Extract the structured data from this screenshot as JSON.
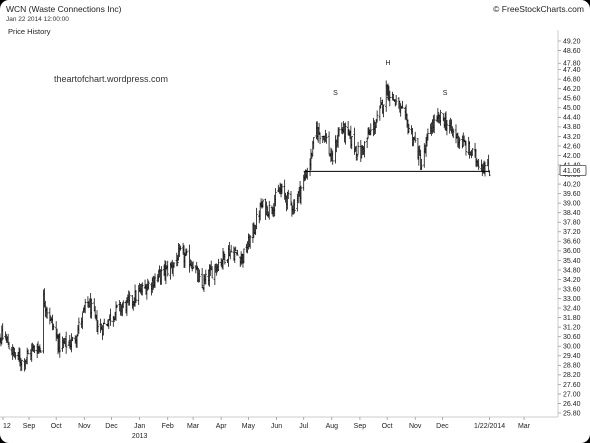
{
  "header": {
    "title": "WCN (Waste Connections Inc)",
    "date": "Jan 22 2014 12:00:00",
    "brand": "© FreeStockCharts.com",
    "watermark": "theartofchart.wordpress.com"
  },
  "legend": "Price History",
  "colors": {
    "background": "#ffffff",
    "frame": "#000000",
    "bars": "#111111",
    "neckline": "#000000",
    "axis": "#cccccc",
    "text": "#222222",
    "label_box": "#444444"
  },
  "chart_data": {
    "type": "ohlc",
    "title": "WCN (Waste Connections Inc)",
    "ylim": [
      25.8,
      49.2
    ],
    "yticks": [
      49.2,
      48.6,
      47.8,
      47.4,
      46.8,
      46.2,
      45.6,
      45.0,
      44.4,
      43.8,
      43.2,
      42.6,
      42.0,
      41.4,
      40.8,
      40.2,
      39.6,
      39.0,
      38.4,
      37.8,
      37.2,
      36.6,
      36.0,
      35.4,
      34.8,
      34.2,
      33.6,
      33.0,
      32.4,
      31.8,
      31.2,
      30.6,
      30.0,
      29.4,
      28.8,
      28.2,
      27.6,
      27.0,
      26.4,
      25.8
    ],
    "ytick_labels": [
      "49.20",
      "48.60",
      "47.80",
      "47.40",
      "46.80",
      "46.20",
      "45.60",
      "45.00",
      "44.40",
      "43.80",
      "43.20",
      "42.60",
      "42.00",
      "41.40",
      "40.80",
      "40.20",
      "39.60",
      "39.00",
      "38.40",
      "37.80",
      "37.20",
      "36.60",
      "36.00",
      "35.40",
      "34.80",
      "34.20",
      "33.60",
      "33.00",
      "32.40",
      "31.80",
      "31.20",
      "30.60",
      "30.00",
      "29.40",
      "28.80",
      "28.20",
      "27.60",
      "27.00",
      "26.40",
      "25.80"
    ],
    "last_price_label": "41.06",
    "x_ticks": [
      {
        "label": "12",
        "date": "2012-08-01"
      },
      {
        "label": "Sep",
        "date": "2012-09-01"
      },
      {
        "label": "Oct",
        "date": "2012-10-01"
      },
      {
        "label": "Nov",
        "date": "2012-11-01"
      },
      {
        "label": "Dec",
        "date": "2012-12-01"
      },
      {
        "label": "Jan",
        "date": "2013-01-01"
      },
      {
        "label": "Feb",
        "date": "2013-02-01"
      },
      {
        "label": "Mar",
        "date": "2013-03-01"
      },
      {
        "label": "Apr",
        "date": "2013-04-01"
      },
      {
        "label": "May",
        "date": "2013-05-01"
      },
      {
        "label": "Jun",
        "date": "2013-06-01"
      },
      {
        "label": "Jul",
        "date": "2013-07-01"
      },
      {
        "label": "Aug",
        "date": "2013-08-01"
      },
      {
        "label": "Sep",
        "date": "2013-09-01"
      },
      {
        "label": "Oct",
        "date": "2013-10-01"
      },
      {
        "label": "Nov",
        "date": "2013-11-01"
      },
      {
        "label": "Dec",
        "date": "2013-12-01"
      },
      {
        "label": "1/22/2014",
        "date": "2014-01-22"
      },
      {
        "label": "Mar",
        "date": "2014-03-01"
      }
    ],
    "year_labels": [
      {
        "label": "2013",
        "date": "2013-01-01"
      }
    ],
    "price_path": [
      {
        "date": "2012-07-20",
        "price": 30.3
      },
      {
        "date": "2012-08-05",
        "price": 30.6
      },
      {
        "date": "2012-08-15",
        "price": 29.5
      },
      {
        "date": "2012-08-25",
        "price": 29.0
      },
      {
        "date": "2012-09-05",
        "price": 29.8
      },
      {
        "date": "2012-09-14",
        "price": 30.0
      },
      {
        "date": "2012-09-17",
        "price": 33.0
      },
      {
        "date": "2012-09-24",
        "price": 31.8
      },
      {
        "date": "2012-10-05",
        "price": 30.0
      },
      {
        "date": "2012-10-20",
        "price": 30.3
      },
      {
        "date": "2012-11-05",
        "price": 32.8
      },
      {
        "date": "2012-11-18",
        "price": 31.0
      },
      {
        "date": "2012-12-05",
        "price": 32.2
      },
      {
        "date": "2012-12-20",
        "price": 32.7
      },
      {
        "date": "2013-01-05",
        "price": 33.6
      },
      {
        "date": "2013-01-20",
        "price": 34.3
      },
      {
        "date": "2013-02-05",
        "price": 35.0
      },
      {
        "date": "2013-02-15",
        "price": 35.8
      },
      {
        "date": "2013-03-01",
        "price": 35.2
      },
      {
        "date": "2013-03-10",
        "price": 33.7
      },
      {
        "date": "2013-03-25",
        "price": 35.0
      },
      {
        "date": "2013-04-10",
        "price": 36.0
      },
      {
        "date": "2013-04-25",
        "price": 35.6
      },
      {
        "date": "2013-05-05",
        "price": 37.0
      },
      {
        "date": "2013-05-15",
        "price": 38.8
      },
      {
        "date": "2013-05-25",
        "price": 38.6
      },
      {
        "date": "2013-06-05",
        "price": 39.8
      },
      {
        "date": "2013-06-20",
        "price": 38.8
      },
      {
        "date": "2013-07-01",
        "price": 40.4
      },
      {
        "date": "2013-07-08",
        "price": 41.6
      },
      {
        "date": "2013-07-15",
        "price": 43.6
      },
      {
        "date": "2013-07-25",
        "price": 43.2
      },
      {
        "date": "2013-08-01",
        "price": 41.6
      },
      {
        "date": "2013-08-10",
        "price": 43.8
      },
      {
        "date": "2013-08-20",
        "price": 43.2
      },
      {
        "date": "2013-09-01",
        "price": 42.0
      },
      {
        "date": "2013-09-10",
        "price": 43.2
      },
      {
        "date": "2013-09-20",
        "price": 44.2
      },
      {
        "date": "2013-10-01",
        "price": 46.2
      },
      {
        "date": "2013-10-10",
        "price": 45.4
      },
      {
        "date": "2013-10-20",
        "price": 44.4
      },
      {
        "date": "2013-11-01",
        "price": 42.8
      },
      {
        "date": "2013-11-08",
        "price": 41.4
      },
      {
        "date": "2013-11-18",
        "price": 43.8
      },
      {
        "date": "2013-12-01",
        "price": 44.4
      },
      {
        "date": "2013-12-10",
        "price": 43.6
      },
      {
        "date": "2013-12-20",
        "price": 43.0
      },
      {
        "date": "2014-01-01",
        "price": 42.2
      },
      {
        "date": "2014-01-10",
        "price": 41.6
      },
      {
        "date": "2014-01-22",
        "price": 41.06
      }
    ],
    "neckline": {
      "price": 41.0,
      "from": "2013-07-01",
      "to": "2014-01-22"
    },
    "annotations": [
      {
        "text": "S",
        "date": "2013-08-05",
        "price": 45.8
      },
      {
        "text": "H",
        "date": "2013-10-02",
        "price": 47.7
      },
      {
        "text": "S",
        "date": "2013-12-04",
        "price": 45.8
      }
    ]
  }
}
